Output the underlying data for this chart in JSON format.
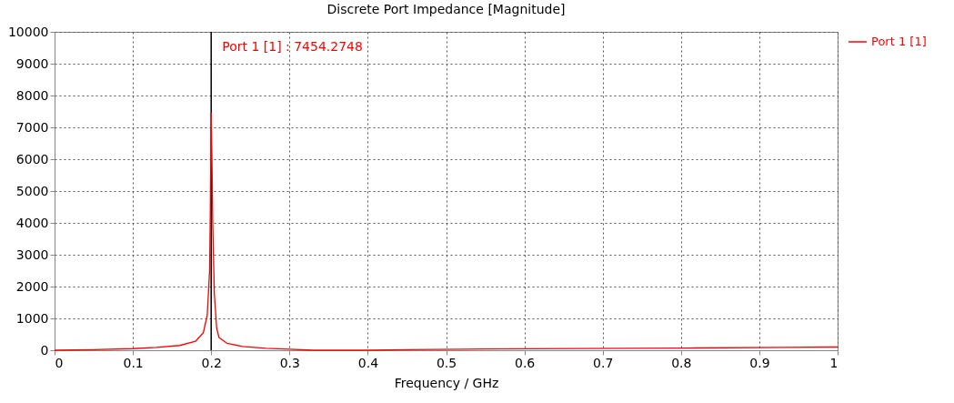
{
  "chart_data": {
    "type": "line",
    "title": "Discrete Port Impedance [Magnitude]",
    "xlabel": "Frequency / GHz",
    "x": [
      0,
      0.05,
      0.1,
      0.13,
      0.16,
      0.18,
      0.19,
      0.195,
      0.198,
      0.199,
      0.2,
      0.201,
      0.202,
      0.204,
      0.207,
      0.21,
      0.22,
      0.24,
      0.27,
      0.3,
      0.33,
      0.4,
      0.45,
      0.55,
      0.67,
      0.81,
      0.93,
      1
    ],
    "series": [
      {
        "name": "Port 1 [1]",
        "color": "#ff0000",
        "values": [
          0,
          20,
          50,
          90,
          150,
          280,
          550,
          1100,
          2500,
          4500,
          7454.2748,
          6000,
          4000,
          1800,
          700,
          400,
          220,
          120,
          60,
          30,
          0,
          0,
          20,
          40,
          55,
          70,
          90,
          100
        ]
      }
    ],
    "xlim": [
      0,
      1
    ],
    "xticks": [
      0,
      0.1,
      0.2,
      0.3,
      0.4,
      0.5,
      0.6,
      0.7,
      0.8,
      0.9,
      1
    ],
    "ylim": [
      0,
      10000
    ],
    "yticks": [
      0,
      1000,
      2000,
      3000,
      4000,
      5000,
      6000,
      7000,
      8000,
      9000,
      10000
    ],
    "ref_lines": [
      {
        "axis": "x",
        "value": 0.2,
        "color": "#000000"
      }
    ],
    "annotations": [
      "Port 1 [1] : 7454.2748"
    ],
    "grid": true,
    "legend": "top right",
    "line_style": "solid"
  }
}
